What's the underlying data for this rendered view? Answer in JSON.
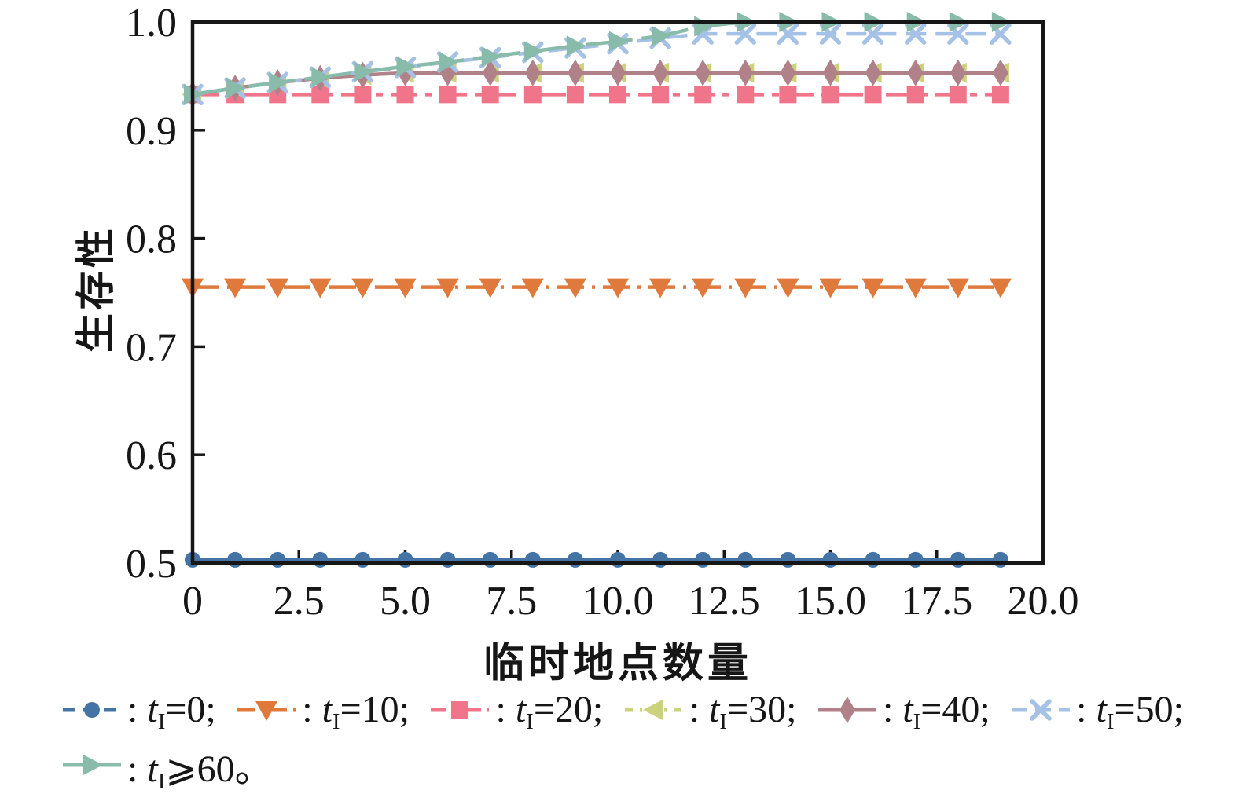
{
  "chart_data": {
    "type": "line",
    "title": "",
    "xlabel": "临时地点数量",
    "ylabel": "生存性",
    "xlim": [
      0,
      20
    ],
    "ylim": [
      0.5,
      1.0
    ],
    "grid": false,
    "legend_position": "below-plot-two-rows",
    "xticks": {
      "values": [
        0,
        2.5,
        5,
        7.5,
        10,
        12.5,
        15,
        17.5,
        20
      ],
      "labels": [
        "0",
        "2.5",
        "5.0",
        "7.5",
        "10.0",
        "12.5",
        "15.0",
        "17.5",
        "20.0"
      ]
    },
    "yticks": {
      "values": [
        0.5,
        0.6,
        0.7,
        0.8,
        0.9,
        1.0
      ],
      "labels": [
        "0.5",
        "0.6",
        "0.7",
        "0.8",
        "0.9",
        "1.0"
      ]
    },
    "x": [
      0,
      1,
      2,
      3,
      4,
      5,
      6,
      7,
      8,
      9,
      10,
      11,
      12,
      13,
      14,
      15,
      16,
      17,
      18,
      19
    ],
    "series": [
      {
        "name": "tI-0",
        "label": {
          "pre": ": ",
          "var": "t",
          "sub": "I",
          "post": "=0;"
        },
        "color": "#4473a5",
        "marker": "circle",
        "dash": null,
        "legend_dash": "16 10",
        "values": [
          0.503,
          0.503,
          0.503,
          0.503,
          0.503,
          0.503,
          0.503,
          0.503,
          0.503,
          0.503,
          0.503,
          0.503,
          0.503,
          0.503,
          0.503,
          0.503,
          0.503,
          0.503,
          0.503,
          0.503
        ]
      },
      {
        "name": "tI-10",
        "label": {
          "pre": ": ",
          "var": "t",
          "sub": "I",
          "post": "=10;"
        },
        "color": "#e0793c",
        "marker": "triangle-down",
        "dash": "34 10 4 10",
        "legend_dash": "22 8 3 8",
        "values": [
          0.755,
          0.755,
          0.755,
          0.755,
          0.755,
          0.755,
          0.755,
          0.755,
          0.755,
          0.755,
          0.755,
          0.755,
          0.755,
          0.755,
          0.755,
          0.755,
          0.755,
          0.755,
          0.755,
          0.755
        ]
      },
      {
        "name": "tI-20",
        "label": {
          "pre": ": ",
          "var": "t",
          "sub": "I",
          "post": "=20;"
        },
        "color": "#f0758a",
        "marker": "square",
        "dash": "34 10 9 10",
        "legend_dash": "20 8 8 8",
        "values": [
          0.933,
          0.933,
          0.933,
          0.933,
          0.933,
          0.933,
          0.933,
          0.933,
          0.933,
          0.933,
          0.933,
          0.933,
          0.933,
          0.933,
          0.933,
          0.933,
          0.933,
          0.933,
          0.933,
          0.933
        ]
      },
      {
        "name": "tI-30",
        "label": {
          "pre": ": ",
          "var": "t",
          "sub": "I",
          "post": "=30;"
        },
        "color": "#ccd17c",
        "marker": "triangle-left",
        "dash": "12 10",
        "legend_dash": "10 9 3 9",
        "values": [
          0.933,
          0.939,
          0.944,
          0.948,
          0.951,
          0.953,
          0.953,
          0.953,
          0.953,
          0.953,
          0.953,
          0.953,
          0.953,
          0.953,
          0.953,
          0.953,
          0.953,
          0.953,
          0.953,
          0.953
        ]
      },
      {
        "name": "tI-40",
        "label": {
          "pre": ": ",
          "var": "t",
          "sub": "I",
          "post": "=40;"
        },
        "color": "#b1818a",
        "marker": "diamond",
        "dash": null,
        "legend_dash": null,
        "values": [
          0.933,
          0.939,
          0.944,
          0.948,
          0.951,
          0.953,
          0.953,
          0.953,
          0.953,
          0.953,
          0.953,
          0.953,
          0.953,
          0.953,
          0.953,
          0.953,
          0.953,
          0.953,
          0.953,
          0.953
        ]
      },
      {
        "name": "tI-50",
        "label": {
          "pre": ": ",
          "var": "t",
          "sub": "I",
          "post": "=50;"
        },
        "color": "#a5c1e6",
        "marker": "x",
        "dash": "26 12",
        "legend_dash": "20 10",
        "values": [
          0.933,
          0.939,
          0.944,
          0.949,
          0.954,
          0.958,
          0.963,
          0.967,
          0.972,
          0.976,
          0.98,
          0.985,
          0.989,
          0.989,
          0.989,
          0.989,
          0.989,
          0.989,
          0.989,
          0.989
        ]
      },
      {
        "name": "tI-ge-60",
        "label": {
          "pre": ": ",
          "var": "t",
          "sub": "I",
          "post": "⩾60。"
        },
        "color": "#89bbab",
        "marker": "triangle-right",
        "dash": "60 12",
        "legend_dash": null,
        "values": [
          0.933,
          0.939,
          0.944,
          0.949,
          0.954,
          0.959,
          0.963,
          0.968,
          0.973,
          0.978,
          0.982,
          0.987,
          0.996,
          1.0,
          1.0,
          1.0,
          1.0,
          1.0,
          1.0,
          1.0
        ]
      }
    ]
  },
  "legend": {
    "rows": [
      [
        0,
        1,
        2,
        3,
        4,
        5
      ],
      [
        6
      ]
    ]
  },
  "frame_color": "#161616"
}
